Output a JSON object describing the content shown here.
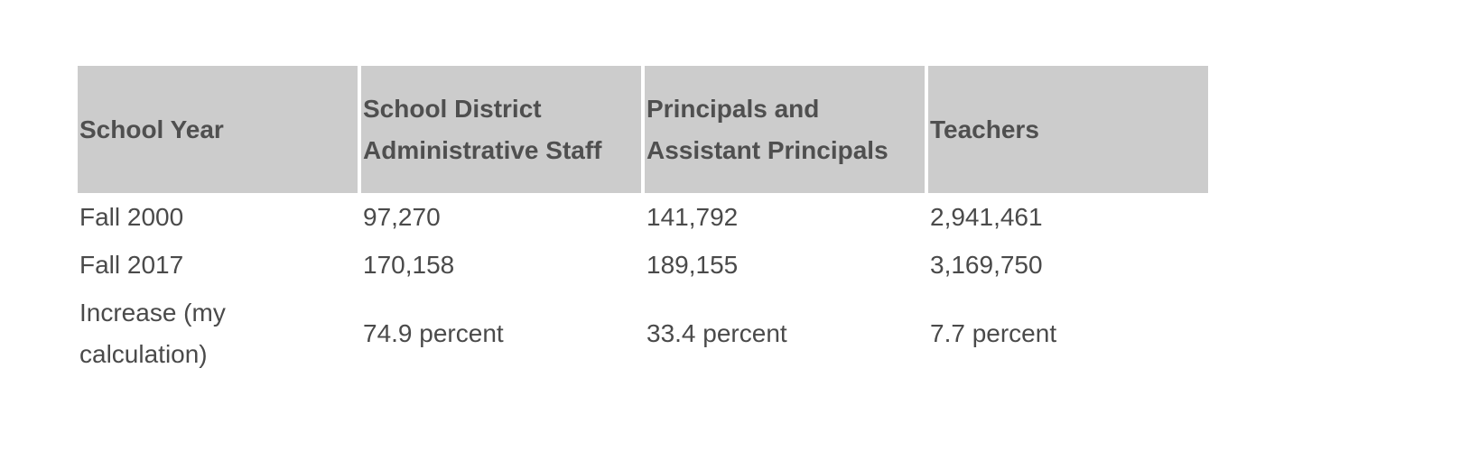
{
  "table": {
    "header": [
      "School Year",
      "School District Administrative Staff",
      "Principals and Assistant Principals",
      "Teachers"
    ],
    "rows": [
      [
        "Fall 2000",
        "97,270",
        "141,792",
        "2,941,461"
      ],
      [
        "Fall 2017",
        "170,158",
        "189,155",
        "3,169,750"
      ],
      [
        "Increase (my calculation)",
        "74.9 percent",
        "33.4 percent",
        "7.7 percent"
      ]
    ]
  }
}
